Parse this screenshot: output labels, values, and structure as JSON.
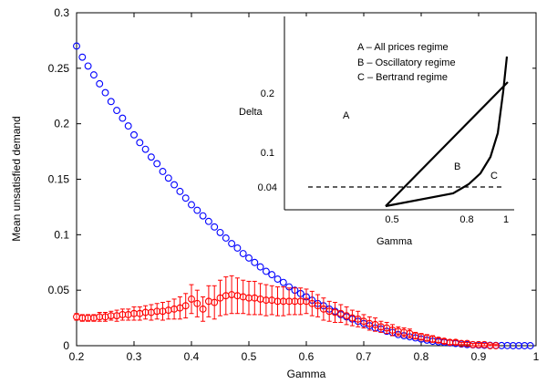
{
  "chart_data": [
    {
      "type": "scatter",
      "xlabel": "Gamma",
      "ylabel": "Mean unsatisfied demand",
      "xlim": [
        0.2,
        1.0
      ],
      "ylim": [
        0,
        0.3
      ],
      "x_ticks": [
        "0.2",
        "0.3",
        "0.4",
        "0.5",
        "0.6",
        "0.7",
        "0.8",
        "0.9",
        "1"
      ],
      "y_ticks": [
        "0",
        "0.05",
        "0.1",
        "0.15",
        "0.2",
        "0.25",
        "0.3"
      ],
      "grid": false,
      "series": [
        {
          "color": "#0000ff",
          "marker": "circle",
          "x": [
            0.2,
            0.21,
            0.22,
            0.23,
            0.24,
            0.25,
            0.26,
            0.27,
            0.28,
            0.29,
            0.3,
            0.31,
            0.32,
            0.33,
            0.34,
            0.35,
            0.36,
            0.37,
            0.38,
            0.39,
            0.4,
            0.41,
            0.42,
            0.43,
            0.44,
            0.45,
            0.46,
            0.47,
            0.48,
            0.49,
            0.5,
            0.51,
            0.52,
            0.53,
            0.54,
            0.55,
            0.56,
            0.57,
            0.58,
            0.59,
            0.6,
            0.61,
            0.62,
            0.63,
            0.64,
            0.65,
            0.66,
            0.67,
            0.68,
            0.69,
            0.7,
            0.71,
            0.72,
            0.73,
            0.74,
            0.75,
            0.76,
            0.77,
            0.78,
            0.79,
            0.8,
            0.81,
            0.82,
            0.83,
            0.84,
            0.85,
            0.86,
            0.87,
            0.88,
            0.89,
            0.9,
            0.91,
            0.92,
            0.93,
            0.94,
            0.95,
            0.96,
            0.97,
            0.98,
            0.99
          ],
          "y": [
            0.27,
            0.26,
            0.252,
            0.244,
            0.236,
            0.228,
            0.22,
            0.212,
            0.205,
            0.198,
            0.19,
            0.183,
            0.177,
            0.17,
            0.164,
            0.157,
            0.151,
            0.145,
            0.139,
            0.133,
            0.127,
            0.122,
            0.117,
            0.112,
            0.107,
            0.102,
            0.097,
            0.092,
            0.088,
            0.083,
            0.079,
            0.075,
            0.071,
            0.067,
            0.064,
            0.06,
            0.057,
            0.053,
            0.05,
            0.047,
            0.044,
            0.041,
            0.038,
            0.036,
            0.033,
            0.031,
            0.028,
            0.026,
            0.024,
            0.022,
            0.02,
            0.018,
            0.016,
            0.015,
            0.013,
            0.012,
            0.01,
            0.009,
            0.008,
            0.007,
            0.006,
            0.005,
            0.004,
            0.0035,
            0.003,
            0.0025,
            0.002,
            0.0015,
            0.001,
            0.0008,
            0.0006,
            0.0004,
            0.0003,
            0.0002,
            0.0001,
            0.0001,
            0,
            0,
            0,
            0
          ]
        },
        {
          "color": "#ff0000",
          "marker": "circle",
          "x": [
            0.2,
            0.21,
            0.22,
            0.23,
            0.24,
            0.25,
            0.26,
            0.27,
            0.28,
            0.29,
            0.3,
            0.31,
            0.32,
            0.33,
            0.34,
            0.35,
            0.36,
            0.37,
            0.38,
            0.39,
            0.4,
            0.41,
            0.42,
            0.43,
            0.44,
            0.45,
            0.46,
            0.47,
            0.48,
            0.49,
            0.5,
            0.51,
            0.52,
            0.53,
            0.54,
            0.55,
            0.56,
            0.57,
            0.58,
            0.59,
            0.6,
            0.61,
            0.62,
            0.63,
            0.64,
            0.65,
            0.66,
            0.67,
            0.68,
            0.69,
            0.7,
            0.71,
            0.72,
            0.73,
            0.74,
            0.75,
            0.76,
            0.77,
            0.78,
            0.79,
            0.8,
            0.81,
            0.82,
            0.83,
            0.84,
            0.85,
            0.86,
            0.87,
            0.88,
            0.89,
            0.9,
            0.91,
            0.92,
            0.93
          ],
          "y": [
            0.026,
            0.025,
            0.025,
            0.025,
            0.026,
            0.026,
            0.027,
            0.027,
            0.028,
            0.028,
            0.029,
            0.029,
            0.03,
            0.03,
            0.031,
            0.031,
            0.032,
            0.033,
            0.034,
            0.036,
            0.042,
            0.038,
            0.033,
            0.04,
            0.039,
            0.043,
            0.045,
            0.046,
            0.045,
            0.044,
            0.043,
            0.043,
            0.042,
            0.041,
            0.041,
            0.04,
            0.04,
            0.04,
            0.04,
            0.04,
            0.04,
            0.038,
            0.036,
            0.033,
            0.031,
            0.03,
            0.029,
            0.027,
            0.025,
            0.024,
            0.022,
            0.02,
            0.019,
            0.017,
            0.016,
            0.014,
            0.013,
            0.012,
            0.011,
            0.009,
            0.008,
            0.007,
            0.006,
            0.005,
            0.004,
            0.003,
            0.003,
            0.002,
            0.002,
            0.001,
            0.001,
            0.001,
            0,
            0
          ],
          "err": [
            0.003,
            0.003,
            0.003,
            0.003,
            0.004,
            0.004,
            0.004,
            0.005,
            0.005,
            0.005,
            0.006,
            0.006,
            0.006,
            0.007,
            0.007,
            0.008,
            0.008,
            0.009,
            0.01,
            0.011,
            0.013,
            0.012,
            0.011,
            0.014,
            0.015,
            0.016,
            0.017,
            0.017,
            0.016,
            0.015,
            0.015,
            0.015,
            0.014,
            0.014,
            0.013,
            0.013,
            0.013,
            0.012,
            0.012,
            0.012,
            0.011,
            0.011,
            0.01,
            0.01,
            0.009,
            0.009,
            0.008,
            0.008,
            0.007,
            0.007,
            0.006,
            0.006,
            0.006,
            0.005,
            0.005,
            0.005,
            0.004,
            0.004,
            0.004,
            0.003,
            0.003,
            0.003,
            0.003,
            0.002,
            0.002,
            0.002,
            0.002,
            0.001,
            0.001,
            0.001,
            0.001,
            0.001,
            0.001,
            0.001
          ]
        }
      ]
    },
    {
      "type": "line",
      "xlabel": "Gamma",
      "ylabel": "Delta",
      "x_ticks": [
        "0.5",
        "0.8",
        "1"
      ],
      "y_ticks": [
        "0.04",
        "0.1",
        "0.2"
      ],
      "legend": [
        "A – All prices regime",
        "B – Oscillatory regime",
        "C – Bertrand regime"
      ],
      "region_labels": [
        "A",
        "B",
        "C"
      ],
      "dashed_level": 0.04
    }
  ]
}
